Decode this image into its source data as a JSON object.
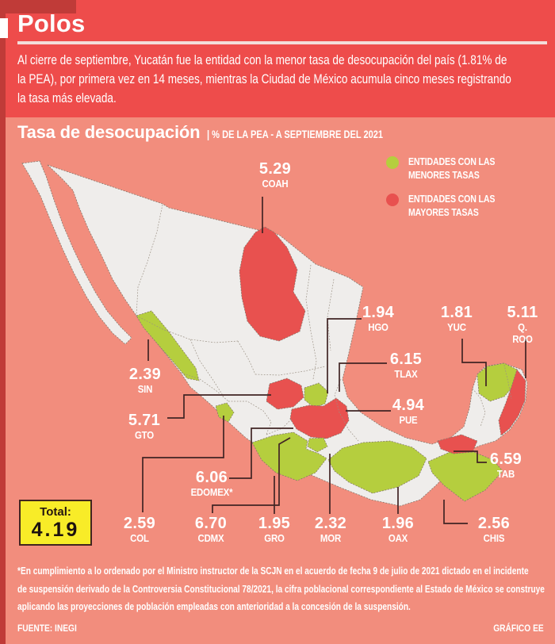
{
  "header": {
    "title": "Polos",
    "intro_lines": [
      "Al cierre de septiembre, Yucatán fue la entidad con la menor tasa de desocupación del país (1.81% de",
      "la PEA), por primera vez en 14 meses, mientras la Ciudad de México acumula cinco meses registrando",
      "la tasa más elevada."
    ]
  },
  "section": {
    "title": "Tasa de desocupación",
    "subtitle": "| % DE LA PEA - A SEPTIEMBRE DEL 2021"
  },
  "legend": {
    "items": [
      {
        "id": "low",
        "label": "ENTIDADES CON LAS MENORES TASAS",
        "color": "#B5CE3E"
      },
      {
        "id": "high",
        "label": "ENTIDADES CON LAS MAYORES TASAS",
        "color": "#E8514F"
      }
    ]
  },
  "map": {
    "states": [
      {
        "code": "COAH",
        "value": "5.29",
        "group": "high"
      },
      {
        "code": "SIN",
        "value": "2.39",
        "group": "low"
      },
      {
        "code": "GTO",
        "value": "5.71",
        "group": "high"
      },
      {
        "code": "HGO",
        "value": "1.94",
        "group": "low"
      },
      {
        "code": "TLAX",
        "value": "6.15",
        "group": "high"
      },
      {
        "code": "PUE",
        "value": "4.94",
        "group": "high"
      },
      {
        "code": "EDOMEX*",
        "value": "6.06",
        "group": "high"
      },
      {
        "code": "CDMX",
        "value": "6.70",
        "group": "high"
      },
      {
        "code": "COL",
        "value": "2.59",
        "group": "low"
      },
      {
        "code": "GRO",
        "value": "1.95",
        "group": "low"
      },
      {
        "code": "MOR",
        "value": "2.32",
        "group": "low"
      },
      {
        "code": "OAX",
        "value": "1.96",
        "group": "low"
      },
      {
        "code": "CHIS",
        "value": "2.56",
        "group": "low"
      },
      {
        "code": "TAB",
        "value": "6.59",
        "group": "high"
      },
      {
        "code": "YUC",
        "value": "1.81",
        "group": "low"
      },
      {
        "code": "Q. ROO",
        "value": "5.11",
        "group": "high"
      }
    ]
  },
  "total": {
    "label": "Total:",
    "value": "4.19"
  },
  "footnote_lines": [
    "*En cumplimiento a lo ordenado por el Ministro instructor de la SCJN en el acuerdo de fecha 9 de julio de 2021 dictado en el incidente",
    "de suspensión derivado de la Controversia Constitucional 78/2021, la cifra poblacional correspondiente al Estado de México se construye",
    "aplicando las proyecciones de población empleadas con anterioridad a la concesión de la suspensión."
  ],
  "credits": {
    "source": "FUENTE: INEGI",
    "graphic": "GRÁFICO EE"
  },
  "colors": {
    "banner": "#EE4C4B",
    "background": "#F28D7D",
    "accent_dark": "#C03B38",
    "underline": "#F3DDDA",
    "yellow": "#F8EC28",
    "map_fill": "#EFEDEB",
    "map_stroke": "#85796D",
    "border_stroke": "#9A9084",
    "connector": "#412424"
  }
}
